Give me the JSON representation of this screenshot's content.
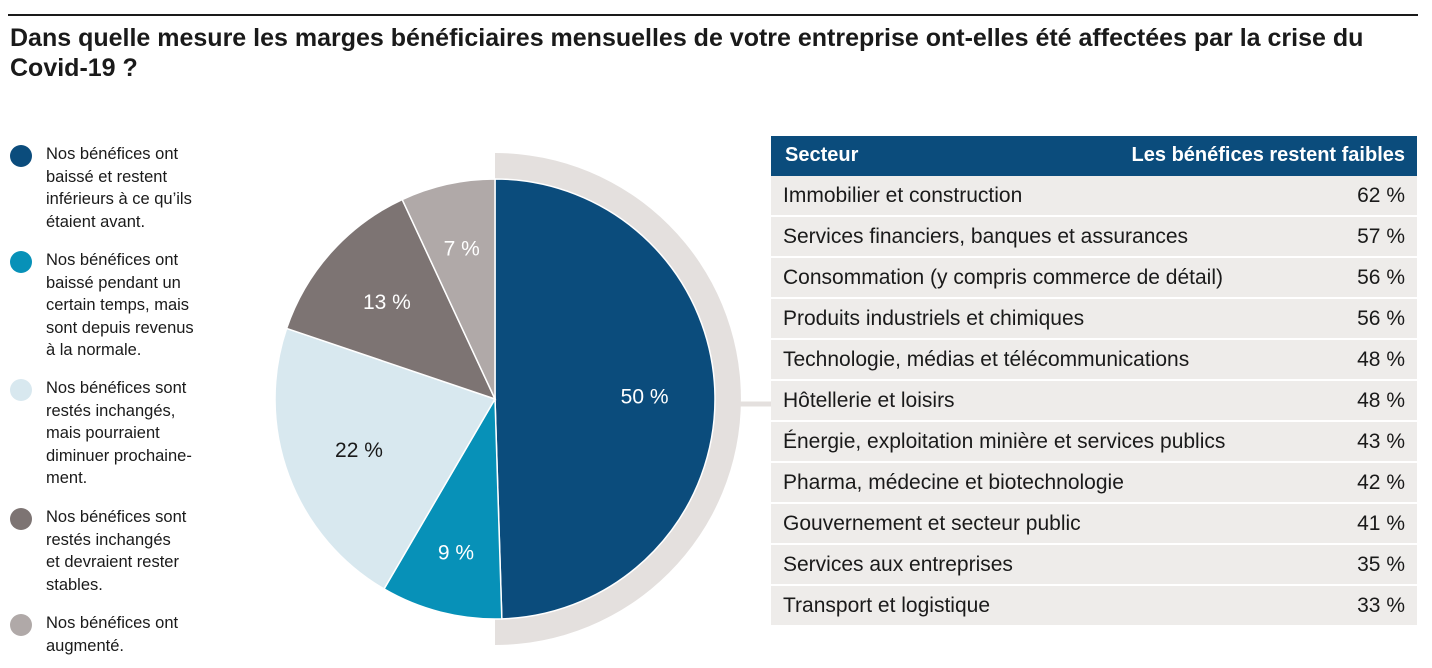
{
  "title": "Dans quelle mesure les marges bénéficiaires mensuelles de votre entreprise ont-elles été affectées par la crise du Covid-19 ?",
  "colors": {
    "dark_blue": "#0b4c7c",
    "teal": "#0791b8",
    "light_blue": "#d8e8ef",
    "dark_gray": "#7d7473",
    "light_gray": "#b0a9a8",
    "ring": "#e4e0de",
    "table_row": "#eeecea"
  },
  "legend": [
    {
      "text": "Nos bénéfices ont\nbaissé et restent\ninférieurs à ce qu’ils\nétaient avant.",
      "color": "#0b4c7c"
    },
    {
      "text": "Nos bénéfices ont\nbaissé pendant un\ncertain temps, mais\nsont depuis revenus\nà la normale.",
      "color": "#0791b8"
    },
    {
      "text": "Nos bénéfices sont\nrestés inchangés,\nmais pourraient\ndiminuer prochaine-\nment.",
      "color": "#d8e8ef"
    },
    {
      "text": "Nos bénéfices sont\nrestés inchangés\net devraient rester\nstables.",
      "color": "#7d7473"
    },
    {
      "text": "Nos bénéfices ont\naugmenté.",
      "color": "#b0a9a8"
    }
  ],
  "chart_data": [
    {
      "type": "pie",
      "categories": [
        "Nos bénéfices ont baissé et restent inférieurs à ce qu’ils étaient avant.",
        "Nos bénéfices ont baissé pendant un certain temps, mais sont depuis revenus à la normale.",
        "Nos bénéfices sont restés inchangés, mais pourraient diminuer prochainement.",
        "Nos bénéfices sont restés inchangés et devraient rester stables.",
        "Nos bénéfices ont augmenté."
      ],
      "values": [
        50,
        9,
        22,
        13,
        7
      ],
      "labels": [
        "50 %",
        "9 %",
        "22 %",
        "13 %",
        "7 %"
      ],
      "colors": [
        "#0b4c7c",
        "#0791b8",
        "#d8e8ef",
        "#7d7473",
        "#b0a9a8"
      ],
      "label_colors": [
        "#ffffff",
        "#ffffff",
        "#1a1a1a",
        "#ffffff",
        "#ffffff"
      ]
    },
    {
      "type": "table",
      "columns": [
        "Secteur",
        "Les bénéfices restent faibles"
      ],
      "rows": [
        {
          "sector": "Immobilier et construction",
          "value": "62 %"
        },
        {
          "sector": "Services financiers, banques et assurances",
          "value": "57 %"
        },
        {
          "sector": "Consommation (y compris commerce de détail)",
          "value": "56 %"
        },
        {
          "sector": "Produits industriels et chimiques",
          "value": "56 %"
        },
        {
          "sector": "Technologie, médias et télécommunications",
          "value": "48 %"
        },
        {
          "sector": "Hôtellerie et loisirs",
          "value": "48 %"
        },
        {
          "sector": "Énergie, exploitation minière et services publics",
          "value": "43 %"
        },
        {
          "sector": "Pharma, médecine et biotechnologie",
          "value": "42 %"
        },
        {
          "sector": "Gouvernement et secteur public",
          "value": "41 %"
        },
        {
          "sector": "Services aux entreprises",
          "value": "35 %"
        },
        {
          "sector": "Transport et logistique",
          "value": "33 %"
        }
      ]
    }
  ]
}
